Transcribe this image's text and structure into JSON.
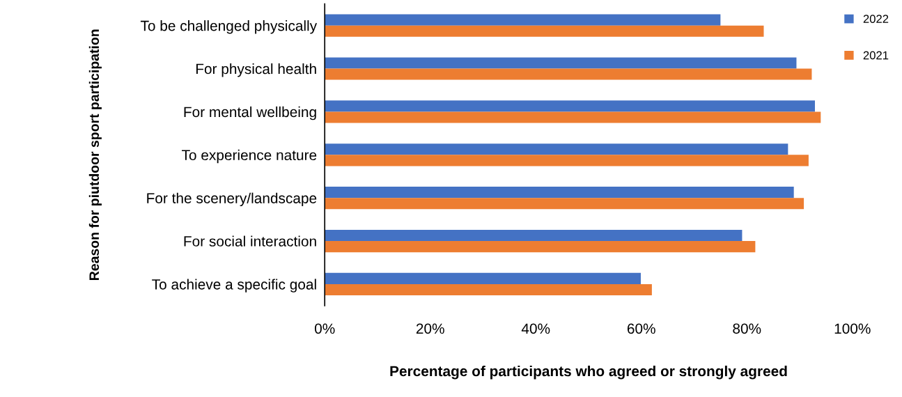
{
  "chart_data": {
    "type": "bar",
    "orientation": "horizontal",
    "xlabel": "Percentage of participants who agreed or strongly agreed",
    "ylabel": "Reason for piutdoor sport participation",
    "categories": [
      "To be challenged physically",
      "For physical health",
      "For mental wellbeing",
      "To experience nature",
      "For the scenery/landscape",
      "For social interaction",
      "To achieve a specific goal"
    ],
    "series": [
      {
        "name": "2022",
        "color": "#4472c4",
        "values": [
          75,
          89.4,
          92.9,
          87.8,
          88.9,
          79.1,
          59.9
        ]
      },
      {
        "name": "2021",
        "color": "#ed7d31",
        "values": [
          83.2,
          92.3,
          94,
          91.7,
          90.8,
          81.6,
          62
        ]
      }
    ],
    "xlim": [
      0,
      100
    ],
    "xticks": [
      {
        "value": 0,
        "label": "0%"
      },
      {
        "value": 20,
        "label": "20%"
      },
      {
        "value": 40,
        "label": "40%"
      },
      {
        "value": 60,
        "label": "60%"
      },
      {
        "value": 80,
        "label": "80%"
      },
      {
        "value": 100,
        "label": "100%"
      }
    ],
    "grid": false,
    "legend": "top right"
  }
}
